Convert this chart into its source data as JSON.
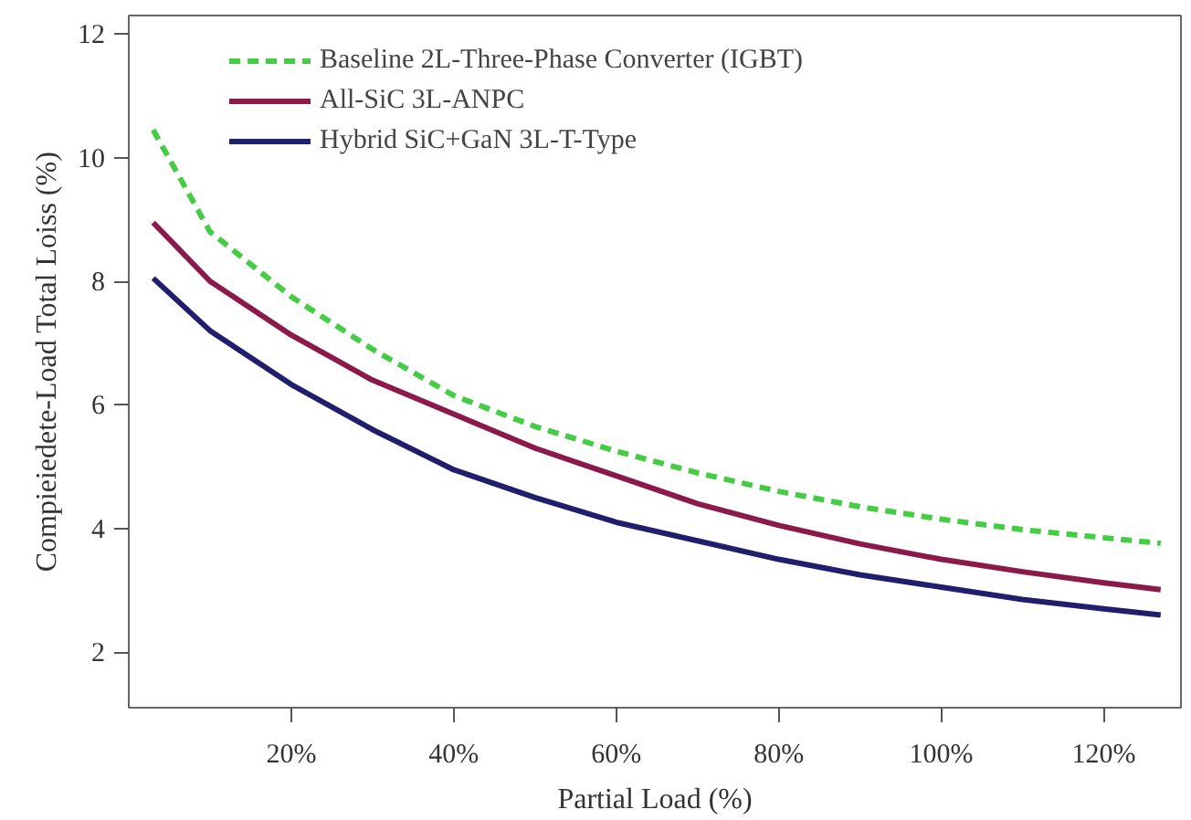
{
  "chart_data": {
    "type": "line",
    "xlabel": "Partial Load (%)",
    "ylabel": "Compieiedete-Load Total Loiss (%)",
    "xlim": [
      0,
      129.5
    ],
    "ylim": [
      1.1,
      12.3
    ],
    "xticks": [
      {
        "value": 20,
        "label": "20%"
      },
      {
        "value": 40,
        "label": "40%"
      },
      {
        "value": 60,
        "label": "60%"
      },
      {
        "value": 80,
        "label": "80%"
      },
      {
        "value": 100,
        "label": "100%"
      },
      {
        "value": 120,
        "label": "120%"
      }
    ],
    "yticks": [
      2,
      4,
      6,
      8,
      10,
      12
    ],
    "x": [
      3,
      10,
      20,
      30,
      40,
      50,
      60,
      70,
      80,
      90,
      100,
      110,
      120,
      127
    ],
    "grid": false,
    "legend": "top left",
    "series": [
      {
        "name": "Baseline 2L-Three-Phase Converter (IGBT)",
        "color": "#44cc44",
        "line_style": "dashed",
        "values": [
          10.45,
          8.8,
          7.75,
          6.9,
          6.15,
          5.65,
          5.25,
          4.9,
          4.6,
          4.35,
          4.15,
          3.98,
          3.85,
          3.76
        ]
      },
      {
        "name": "All-SiC 3L-ANPC",
        "color": "#8b1a4a",
        "line_style": "solid",
        "values": [
          8.95,
          8.0,
          7.13,
          6.4,
          5.85,
          5.3,
          4.85,
          4.4,
          4.05,
          3.75,
          3.5,
          3.3,
          3.12,
          3.01
        ]
      },
      {
        "name": "Hybrid SiC+GaN 3L-T-Type",
        "color": "#1f1f6e",
        "line_style": "solid",
        "values": [
          8.05,
          7.2,
          6.33,
          5.6,
          4.95,
          4.5,
          4.1,
          3.8,
          3.5,
          3.25,
          3.05,
          2.85,
          2.7,
          2.6
        ]
      }
    ]
  }
}
